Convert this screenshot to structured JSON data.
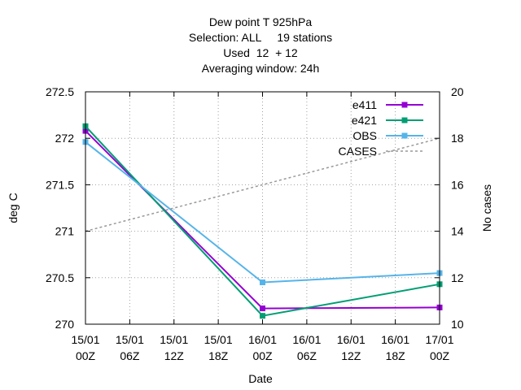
{
  "chart_data": {
    "type": "line",
    "title_lines": [
      "Dew point T 925hPa",
      "Selection: ALL     19 stations",
      "Used  12  + 12",
      "Averaging window: 24h"
    ],
    "xlabel": "Date",
    "ylabel": "deg C",
    "y2label": "No cases",
    "x_ticks": [
      {
        "top": "15/01",
        "bottom": "00Z"
      },
      {
        "top": "15/01",
        "bottom": "06Z"
      },
      {
        "top": "15/01",
        "bottom": "12Z"
      },
      {
        "top": "15/01",
        "bottom": "18Z"
      },
      {
        "top": "16/01",
        "bottom": "00Z"
      },
      {
        "top": "16/01",
        "bottom": "06Z"
      },
      {
        "top": "16/01",
        "bottom": "12Z"
      },
      {
        "top": "16/01",
        "bottom": "18Z"
      },
      {
        "top": "17/01",
        "bottom": "00Z"
      }
    ],
    "x_unit": "hours from 15/01 00Z",
    "xlim": [
      0,
      48
    ],
    "ylim": [
      270,
      272.5
    ],
    "y_ticks": [
      "270",
      "270.5",
      "271",
      "271.5",
      "272",
      "272.5"
    ],
    "y2lim": [
      10,
      20
    ],
    "y2_ticks": [
      "10",
      "12",
      "14",
      "16",
      "18",
      "20"
    ],
    "grid": true,
    "legend_position": "top-right",
    "series": [
      {
        "name": "e411",
        "color": "#9400d3",
        "axis": "y",
        "marker": "square",
        "dash": false,
        "x": [
          0,
          24,
          48
        ],
        "values": [
          272.08,
          270.17,
          270.18
        ]
      },
      {
        "name": "e421",
        "color": "#009e73",
        "axis": "y",
        "marker": "square",
        "dash": false,
        "x": [
          0,
          24,
          48
        ],
        "values": [
          272.13,
          270.09,
          270.43
        ]
      },
      {
        "name": "OBS",
        "color": "#56b4e9",
        "axis": "y",
        "marker": "square",
        "dash": false,
        "x": [
          0,
          24,
          48
        ],
        "values": [
          271.96,
          270.45,
          270.55
        ]
      },
      {
        "name": "CASES",
        "color": "#999999",
        "axis": "y2",
        "marker": "none",
        "dash": true,
        "x": [
          0,
          24,
          48
        ],
        "values": [
          14,
          16,
          18
        ]
      }
    ]
  }
}
